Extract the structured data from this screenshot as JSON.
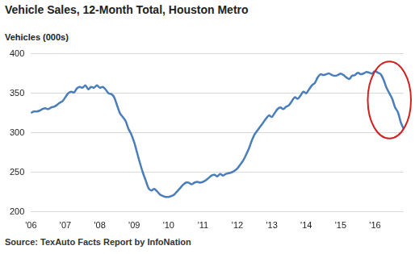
{
  "chart_data": {
    "type": "line",
    "title": "Vehicle Sales, 12-Month Total, Houston Metro",
    "y_label": "Vehicles (000s)",
    "source": "Source: TexAuto Facts Report by InfoNation",
    "color": "#4a7ebb",
    "grid": true,
    "ylim": [
      200,
      400
    ],
    "yticks": [
      200,
      250,
      300,
      350,
      400
    ],
    "categories": [
      "'06",
      null,
      null,
      null,
      null,
      null,
      null,
      null,
      null,
      null,
      null,
      null,
      "'07",
      null,
      null,
      null,
      null,
      null,
      null,
      null,
      null,
      null,
      null,
      null,
      "'08",
      null,
      null,
      null,
      null,
      null,
      null,
      null,
      null,
      null,
      null,
      null,
      "'09",
      null,
      null,
      null,
      null,
      null,
      null,
      null,
      null,
      null,
      null,
      null,
      "'10",
      null,
      null,
      null,
      null,
      null,
      null,
      null,
      null,
      null,
      null,
      null,
      "'11",
      null,
      null,
      null,
      null,
      null,
      null,
      null,
      null,
      null,
      null,
      null,
      "'12",
      null,
      null,
      null,
      null,
      null,
      null,
      null,
      null,
      null,
      null,
      null,
      "'13",
      null,
      null,
      null,
      null,
      null,
      null,
      null,
      null,
      null,
      null,
      null,
      "'14",
      null,
      null,
      null,
      null,
      null,
      null,
      null,
      null,
      null,
      null,
      null,
      "'15",
      null,
      null,
      null,
      null,
      null,
      null,
      null,
      null,
      null,
      null,
      null,
      "'16",
      null,
      null,
      null,
      null,
      null,
      null,
      null,
      null,
      null,
      null
    ],
    "values": [
      325,
      327,
      327,
      328,
      330,
      331,
      330,
      332,
      333,
      335,
      338,
      340,
      345,
      350,
      352,
      351,
      356,
      358,
      357,
      360,
      355,
      358,
      357,
      360,
      357,
      358,
      355,
      350,
      349,
      345,
      335,
      325,
      320,
      315,
      305,
      298,
      288,
      275,
      262,
      250,
      240,
      230,
      227,
      229,
      226,
      222,
      220,
      219,
      219,
      220,
      222,
      226,
      230,
      234,
      237,
      237,
      235,
      237,
      238,
      237,
      238,
      240,
      243,
      246,
      247,
      245,
      248,
      246,
      248,
      249,
      250,
      252,
      255,
      260,
      265,
      272,
      280,
      290,
      298,
      303,
      308,
      313,
      318,
      322,
      320,
      325,
      330,
      332,
      330,
      333,
      335,
      340,
      345,
      343,
      347,
      352,
      350,
      355,
      360,
      363,
      370,
      374,
      373,
      374,
      375,
      373,
      372,
      373,
      375,
      373,
      370,
      368,
      372,
      373,
      376,
      374,
      375,
      377,
      376,
      375,
      378,
      376,
      374,
      367,
      357,
      350,
      343,
      332,
      326,
      313,
      305
    ]
  }
}
